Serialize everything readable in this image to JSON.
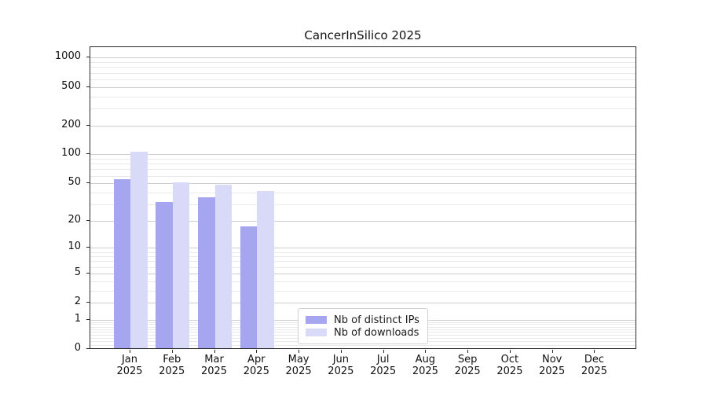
{
  "chart_data": {
    "type": "bar",
    "title": "CancerInSilico 2025",
    "categories": [
      "Jan",
      "Feb",
      "Mar",
      "Apr",
      "May",
      "Jun",
      "Jul",
      "Aug",
      "Sep",
      "Oct",
      "Nov",
      "Dec"
    ],
    "year_label": "2025",
    "series": [
      {
        "name": "Nb of distinct IPs",
        "color": "#a5a5f0",
        "values": [
          54,
          31,
          35,
          17,
          0,
          0,
          0,
          0,
          0,
          0,
          0,
          0
        ]
      },
      {
        "name": "Nb of downloads",
        "color": "#d9d9f8",
        "values": [
          105,
          50,
          47,
          41,
          0,
          0,
          0,
          0,
          0,
          0,
          0,
          0
        ]
      }
    ],
    "yticks": [
      0,
      1,
      2,
      5,
      10,
      20,
      50,
      100,
      200,
      500,
      1000
    ],
    "yscale": "log1p",
    "ylim": [
      0,
      1308
    ],
    "xlabel": "",
    "ylabel": "",
    "grid": "horizontal, log minor gridlines",
    "legend_position": "inside bottom-center"
  }
}
